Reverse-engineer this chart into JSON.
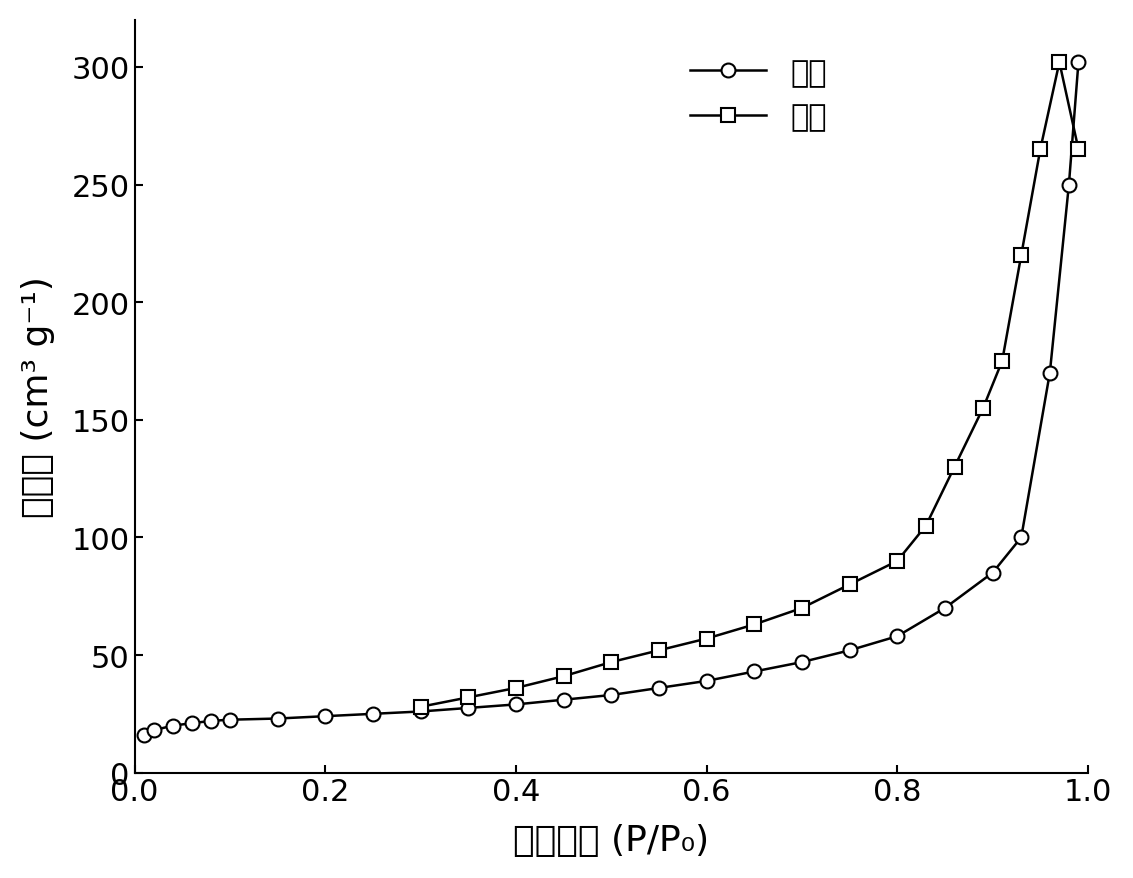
{
  "adsorption_x": [
    0.01,
    0.02,
    0.04,
    0.06,
    0.08,
    0.1,
    0.15,
    0.2,
    0.25,
    0.3,
    0.35,
    0.4,
    0.45,
    0.5,
    0.55,
    0.6,
    0.65,
    0.7,
    0.75,
    0.8,
    0.85,
    0.9,
    0.93,
    0.96,
    0.98,
    0.99
  ],
  "adsorption_y": [
    16,
    18,
    20,
    21,
    22,
    22.5,
    23,
    24,
    25,
    26,
    27.5,
    29,
    31,
    33,
    36,
    39,
    43,
    47,
    52,
    58,
    70,
    85,
    100,
    170,
    250,
    302
  ],
  "desorption_x": [
    0.3,
    0.35,
    0.4,
    0.45,
    0.5,
    0.55,
    0.6,
    0.65,
    0.7,
    0.75,
    0.8,
    0.83,
    0.86,
    0.89,
    0.91,
    0.93,
    0.95,
    0.97,
    0.99
  ],
  "desorption_y": [
    28,
    32,
    36,
    41,
    47,
    52,
    57,
    63,
    70,
    80,
    90,
    105,
    130,
    155,
    175,
    220,
    265,
    302,
    265
  ],
  "xlabel_cn": "相对压力",
  "xlabel_en": " (P/P₀)",
  "ylabel_cn": "吸附量",
  "ylabel_en": " (cm³ g⁻¹)",
  "legend_adsorption": "吸附",
  "legend_desorption": "脱附",
  "xlim": [
    0.0,
    1.0
  ],
  "ylim": [
    0,
    320
  ],
  "xticks": [
    0.0,
    0.2,
    0.4,
    0.6,
    0.8,
    1.0
  ],
  "yticks": [
    0,
    50,
    100,
    150,
    200,
    250,
    300
  ],
  "line_color": "#000000",
  "marker_color": "#ffffff",
  "marker_edge_color": "#000000",
  "background_color": "#ffffff",
  "tick_fontsize": 22,
  "label_fontsize": 26,
  "legend_fontsize": 22
}
